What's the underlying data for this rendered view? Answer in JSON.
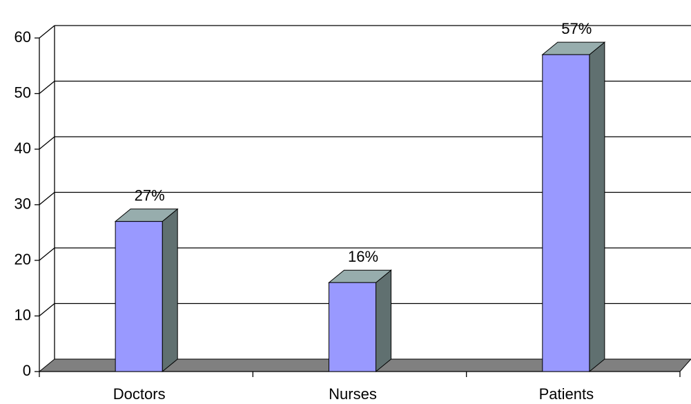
{
  "chart_data": {
    "type": "bar3d",
    "categories": [
      "Doctors",
      "Nurses",
      "Patients"
    ],
    "values": [
      27,
      16,
      57
    ],
    "value_labels": [
      "27%",
      "16%",
      "57%"
    ],
    "color": "#9999ff",
    "ylim": [
      0,
      60
    ],
    "yticks": [
      0,
      10,
      20,
      30,
      40,
      50,
      60
    ],
    "grid": true
  }
}
